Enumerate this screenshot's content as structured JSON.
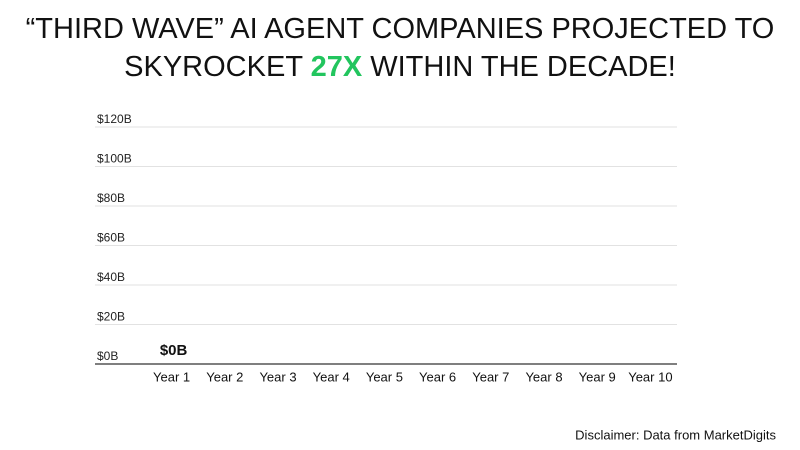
{
  "chart_data": {
    "type": "bar",
    "title": [
      [
        {
          "text": "“THIRD WAVE” AI AGENT COMPANIES PROJECTED TO",
          "color": "#111111"
        }
      ],
      [
        {
          "text": "SKYROCKET ",
          "color": "#111111"
        },
        {
          "text": "27X",
          "color": "#22c55e"
        },
        {
          "text": " WITHIN THE DECADE!",
          "color": "#111111"
        }
      ]
    ],
    "categories": [
      "Year 1",
      "Year 2",
      "Year 3",
      "Year 4",
      "Year 5",
      "Year 6",
      "Year 7",
      "Year 8",
      "Year 9",
      "Year 10"
    ],
    "values": [
      0,
      null,
      null,
      null,
      null,
      null,
      null,
      null,
      null,
      null
    ],
    "value_labels": [
      "$0B",
      null,
      null,
      null,
      null,
      null,
      null,
      null,
      null,
      null
    ],
    "color": "#4a3a55",
    "ylim": [
      0,
      120
    ],
    "yticks": [
      {
        "value": 0,
        "label": "$0B"
      },
      {
        "value": 20,
        "label": "$20B"
      },
      {
        "value": 40,
        "label": "$40B"
      },
      {
        "value": 60,
        "label": "$60B"
      },
      {
        "value": 80,
        "label": "$80B"
      },
      {
        "value": 100,
        "label": "$100B"
      },
      {
        "value": 120,
        "label": "$120B"
      }
    ],
    "grid": true,
    "footnote": "Disclaimer: Data from MarketDigits"
  }
}
